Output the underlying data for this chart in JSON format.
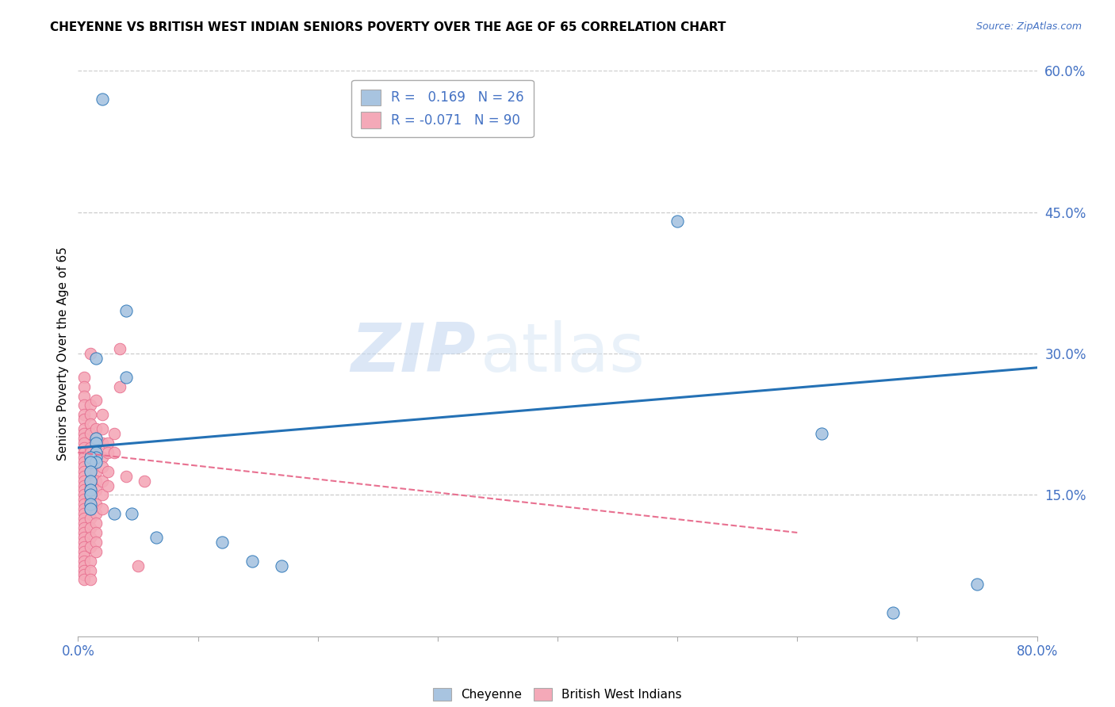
{
  "title": "CHEYENNE VS BRITISH WEST INDIAN SENIORS POVERTY OVER THE AGE OF 65 CORRELATION CHART",
  "source": "Source: ZipAtlas.com",
  "ylabel": "Seniors Poverty Over the Age of 65",
  "xlim": [
    0,
    0.8
  ],
  "ylim": [
    0,
    0.6
  ],
  "xticks": [
    0.0,
    0.1,
    0.2,
    0.3,
    0.4,
    0.5,
    0.6,
    0.7,
    0.8
  ],
  "xticklabels": [
    "0.0%",
    "",
    "",
    "",
    "",
    "",
    "",
    "",
    "80.0%"
  ],
  "yticks": [
    0.0,
    0.15,
    0.3,
    0.45,
    0.6
  ],
  "yticklabels": [
    "",
    "15.0%",
    "30.0%",
    "45.0%",
    "60.0%"
  ],
  "cheyenne_color": "#a8c4e0",
  "bwi_color": "#f4a9b8",
  "trend_cheyenne_color": "#2471b5",
  "trend_bwi_color": "#e87090",
  "watermark_zip": "ZIP",
  "watermark_atlas": "atlas",
  "cheyenne_scatter": [
    [
      0.02,
      0.57
    ],
    [
      0.04,
      0.345
    ],
    [
      0.015,
      0.295
    ],
    [
      0.04,
      0.275
    ],
    [
      0.015,
      0.21
    ],
    [
      0.015,
      0.205
    ],
    [
      0.015,
      0.195
    ],
    [
      0.015,
      0.19
    ],
    [
      0.01,
      0.19
    ],
    [
      0.015,
      0.185
    ],
    [
      0.01,
      0.185
    ],
    [
      0.01,
      0.175
    ],
    [
      0.01,
      0.165
    ],
    [
      0.01,
      0.155
    ],
    [
      0.01,
      0.15
    ],
    [
      0.01,
      0.14
    ],
    [
      0.01,
      0.135
    ],
    [
      0.03,
      0.13
    ],
    [
      0.045,
      0.13
    ],
    [
      0.065,
      0.105
    ],
    [
      0.12,
      0.1
    ],
    [
      0.145,
      0.08
    ],
    [
      0.17,
      0.075
    ],
    [
      0.5,
      0.44
    ],
    [
      0.62,
      0.215
    ],
    [
      0.68,
      0.025
    ],
    [
      0.75,
      0.055
    ]
  ],
  "bwi_scatter": [
    [
      0.005,
      0.275
    ],
    [
      0.005,
      0.265
    ],
    [
      0.005,
      0.255
    ],
    [
      0.005,
      0.245
    ],
    [
      0.005,
      0.235
    ],
    [
      0.005,
      0.23
    ],
    [
      0.005,
      0.22
    ],
    [
      0.005,
      0.215
    ],
    [
      0.005,
      0.21
    ],
    [
      0.005,
      0.205
    ],
    [
      0.005,
      0.2
    ],
    [
      0.005,
      0.195
    ],
    [
      0.005,
      0.19
    ],
    [
      0.005,
      0.185
    ],
    [
      0.005,
      0.18
    ],
    [
      0.005,
      0.175
    ],
    [
      0.005,
      0.17
    ],
    [
      0.005,
      0.165
    ],
    [
      0.005,
      0.16
    ],
    [
      0.005,
      0.155
    ],
    [
      0.005,
      0.15
    ],
    [
      0.005,
      0.145
    ],
    [
      0.005,
      0.14
    ],
    [
      0.005,
      0.135
    ],
    [
      0.005,
      0.13
    ],
    [
      0.005,
      0.125
    ],
    [
      0.005,
      0.12
    ],
    [
      0.005,
      0.115
    ],
    [
      0.005,
      0.11
    ],
    [
      0.005,
      0.105
    ],
    [
      0.005,
      0.1
    ],
    [
      0.005,
      0.095
    ],
    [
      0.005,
      0.09
    ],
    [
      0.005,
      0.085
    ],
    [
      0.005,
      0.08
    ],
    [
      0.005,
      0.075
    ],
    [
      0.005,
      0.07
    ],
    [
      0.005,
      0.065
    ],
    [
      0.005,
      0.06
    ],
    [
      0.01,
      0.3
    ],
    [
      0.01,
      0.245
    ],
    [
      0.01,
      0.235
    ],
    [
      0.01,
      0.225
    ],
    [
      0.01,
      0.215
    ],
    [
      0.01,
      0.2
    ],
    [
      0.01,
      0.195
    ],
    [
      0.01,
      0.185
    ],
    [
      0.01,
      0.175
    ],
    [
      0.01,
      0.16
    ],
    [
      0.01,
      0.155
    ],
    [
      0.01,
      0.145
    ],
    [
      0.01,
      0.135
    ],
    [
      0.01,
      0.125
    ],
    [
      0.01,
      0.115
    ],
    [
      0.01,
      0.105
    ],
    [
      0.01,
      0.095
    ],
    [
      0.01,
      0.08
    ],
    [
      0.01,
      0.07
    ],
    [
      0.01,
      0.06
    ],
    [
      0.015,
      0.25
    ],
    [
      0.015,
      0.22
    ],
    [
      0.015,
      0.21
    ],
    [
      0.015,
      0.195
    ],
    [
      0.015,
      0.185
    ],
    [
      0.015,
      0.175
    ],
    [
      0.015,
      0.165
    ],
    [
      0.015,
      0.155
    ],
    [
      0.015,
      0.14
    ],
    [
      0.015,
      0.13
    ],
    [
      0.015,
      0.12
    ],
    [
      0.015,
      0.11
    ],
    [
      0.015,
      0.1
    ],
    [
      0.015,
      0.09
    ],
    [
      0.02,
      0.235
    ],
    [
      0.02,
      0.22
    ],
    [
      0.02,
      0.205
    ],
    [
      0.02,
      0.19
    ],
    [
      0.02,
      0.18
    ],
    [
      0.02,
      0.165
    ],
    [
      0.02,
      0.15
    ],
    [
      0.02,
      0.135
    ],
    [
      0.025,
      0.205
    ],
    [
      0.025,
      0.195
    ],
    [
      0.025,
      0.175
    ],
    [
      0.025,
      0.16
    ],
    [
      0.03,
      0.215
    ],
    [
      0.03,
      0.195
    ],
    [
      0.035,
      0.305
    ],
    [
      0.035,
      0.265
    ],
    [
      0.04,
      0.17
    ],
    [
      0.05,
      0.075
    ],
    [
      0.055,
      0.165
    ]
  ],
  "cheyenne_trend_x": [
    0.0,
    0.8
  ],
  "cheyenne_trend_y": [
    0.2,
    0.285
  ],
  "bwi_trend_x": [
    0.0,
    0.6
  ],
  "bwi_trend_y": [
    0.195,
    0.11
  ]
}
